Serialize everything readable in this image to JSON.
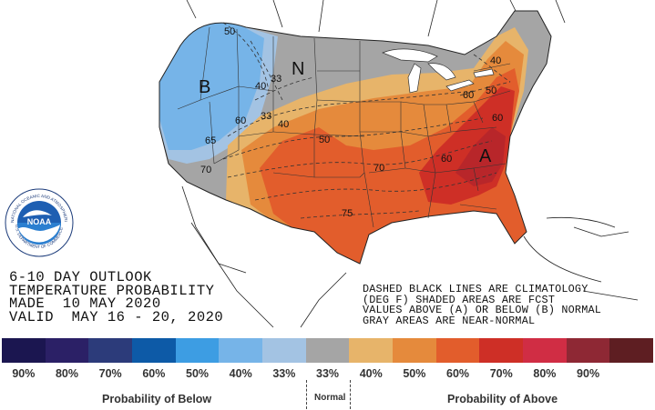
{
  "map": {
    "labels": {
      "region_b": "B",
      "region_n": "N",
      "region_a": "A"
    },
    "contours": [
      "50",
      "40",
      "33",
      "60",
      "65",
      "70",
      "33",
      "40",
      "50",
      "70",
      "75",
      "60",
      "40",
      "50",
      "60",
      "60"
    ]
  },
  "logo": {
    "text": "NOAA",
    "ring_text": "NATIONAL OCEANIC AND ATMOSPHERIC ADMINISTRATION",
    "ring_text_bottom": "U.S. DEPARTMENT OF COMMERCE"
  },
  "title": {
    "line1": "6-10 DAY OUTLOOK",
    "line2": "TEMPERATURE PROBABILITY",
    "line3": "MADE  10 MAY 2020",
    "line4": "VALID  MAY 16 - 20, 2020"
  },
  "note": {
    "line1": "DASHED BLACK LINES ARE CLIMATOLOGY",
    "line2": "(DEG F) SHADED AREAS ARE FCST",
    "line3": "VALUES ABOVE (A) OR BELOW (B) NORMAL",
    "line4": "GRAY AREAS ARE NEAR-NORMAL"
  },
  "legend": {
    "swatches": [
      {
        "color": "#1b1650",
        "label": "90%"
      },
      {
        "color": "#2b2066",
        "label": "80%"
      },
      {
        "color": "#2c3b7a",
        "label": "70%"
      },
      {
        "color": "#0d5aa7",
        "label": "60%"
      },
      {
        "color": "#3d9de3",
        "label": "50%"
      },
      {
        "color": "#76b4e8",
        "label": "40%"
      },
      {
        "color": "#a3c3e3",
        "label": "33%"
      },
      {
        "color": "#a5a5a5",
        "label": "33%"
      },
      {
        "color": "#e7b46a",
        "label": "40%"
      },
      {
        "color": "#e58a3c",
        "label": "50%"
      },
      {
        "color": "#e25d2c",
        "label": "60%"
      },
      {
        "color": "#ce2f26",
        "label": "70%"
      },
      {
        "color": "#d02d44",
        "label": "80%"
      },
      {
        "color": "#8e2834",
        "label": "90%"
      },
      {
        "color": "#5e1e22",
        "label": ""
      }
    ],
    "below_caption": "Probability of Below",
    "normal_caption": "Normal",
    "above_caption": "Probability of Above"
  },
  "colors": {
    "gray": "#a5a5a5",
    "light_blue": "#a3c3e3",
    "mid_blue": "#76b4e8",
    "light_orange": "#e7b46a",
    "orange": "#e58a3c",
    "dark_orange": "#e25d2c",
    "red": "#ce2f26"
  }
}
